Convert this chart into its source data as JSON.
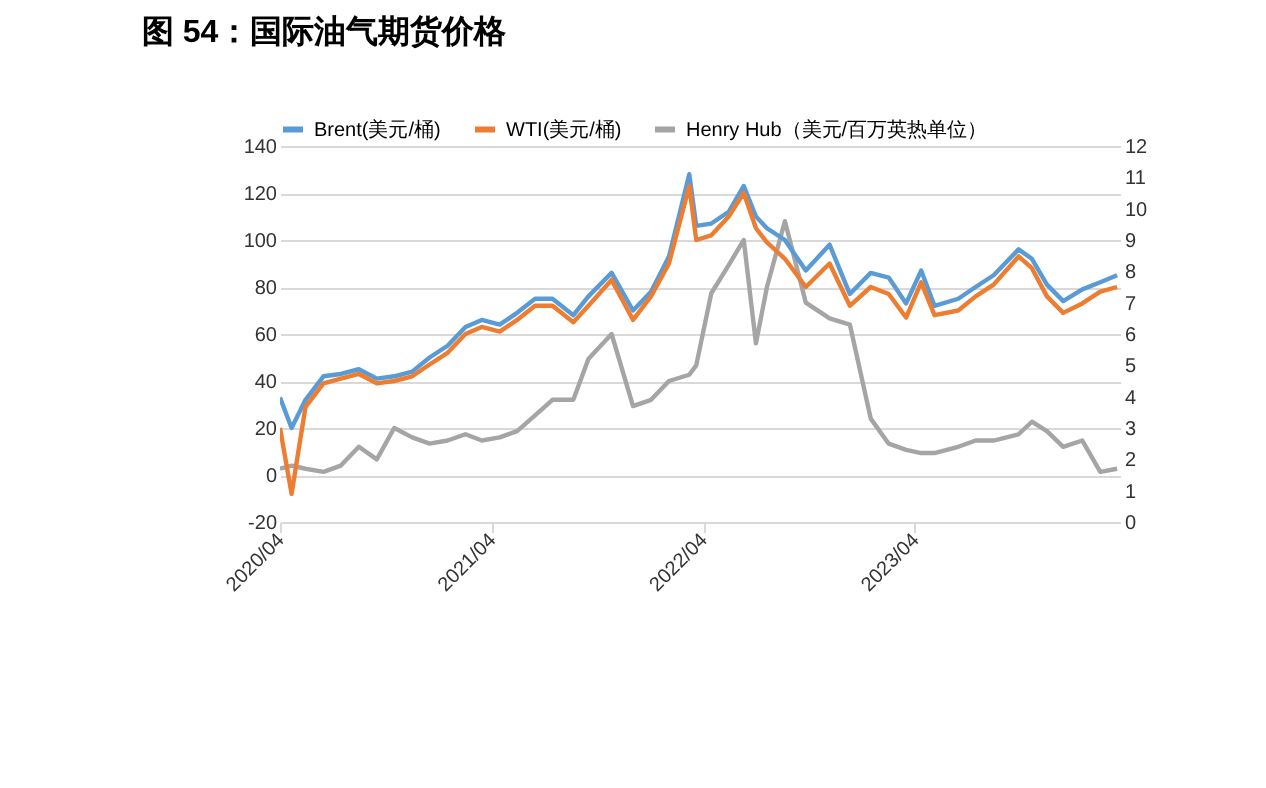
{
  "chart_data": {
    "type": "line",
    "title": "图 54：国际油气期货价格",
    "x": [
      "2020-04-01",
      "2020-04-21",
      "2020-05-15",
      "2020-06-15",
      "2020-07-15",
      "2020-08-15",
      "2020-09-15",
      "2020-10-15",
      "2020-11-15",
      "2020-12-15",
      "2021-01-15",
      "2021-02-15",
      "2021-03-15",
      "2021-04-15",
      "2021-05-15",
      "2021-06-15",
      "2021-07-15",
      "2021-08-20",
      "2021-09-15",
      "2021-10-25",
      "2021-12-01",
      "2022-01-01",
      "2022-02-01",
      "2022-03-08",
      "2022-03-20",
      "2022-04-15",
      "2022-05-15",
      "2022-06-10",
      "2022-07-01",
      "2022-07-20",
      "2022-08-20",
      "2022-09-25",
      "2022-11-05",
      "2022-12-10",
      "2023-01-15",
      "2023-02-15",
      "2023-03-17",
      "2023-04-12",
      "2023-05-05",
      "2023-06-15",
      "2023-07-15",
      "2023-08-15",
      "2023-09-27",
      "2023-10-20",
      "2023-11-15",
      "2023-12-13",
      "2024-01-15",
      "2024-02-15",
      "2024-03-15"
    ],
    "series": [
      {
        "name": "Brent(美元/桶)",
        "color": "#5b9bd5",
        "values": [
          33,
          20,
          32,
          42,
          43,
          45,
          41,
          42,
          44,
          50,
          55,
          63,
          66,
          64,
          69,
          75,
          75,
          68,
          76,
          86,
          70,
          78,
          93,
          128,
          106,
          107,
          112,
          123,
          110,
          105,
          100,
          87,
          98,
          77,
          86,
          84,
          73,
          87,
          72,
          75,
          80,
          85,
          96,
          92,
          81,
          74,
          79,
          82,
          85
        ]
      },
      {
        "name": "WTI(美元/桶)",
        "color": "#ed7d31",
        "values": [
          20,
          -8,
          29,
          39,
          41,
          43,
          39,
          40,
          42,
          47,
          52,
          60,
          63,
          61,
          66,
          72,
          72,
          65,
          72,
          83,
          66,
          76,
          90,
          123,
          100,
          102,
          110,
          120,
          105,
          99,
          92,
          80,
          90,
          72,
          80,
          77,
          67,
          82,
          68,
          70,
          76,
          81,
          93,
          88,
          76,
          69,
          73,
          78,
          80
        ]
      },
      {
        "name": "Henry Hub（美元/百万英热单位）",
        "color": "#a5a5a5",
        "axis": "y2",
        "values": [
          1.7,
          1.8,
          1.7,
          1.6,
          1.8,
          2.4,
          2.0,
          3.0,
          2.7,
          2.5,
          2.6,
          2.8,
          2.6,
          2.7,
          2.9,
          3.4,
          3.9,
          3.9,
          5.2,
          6.0,
          3.7,
          3.9,
          4.5,
          4.7,
          5.0,
          7.3,
          8.2,
          9.0,
          5.7,
          7.5,
          9.6,
          7.0,
          6.5,
          6.3,
          3.3,
          2.5,
          2.3,
          2.2,
          2.2,
          2.4,
          2.6,
          2.6,
          2.8,
          3.2,
          2.9,
          2.4,
          2.6,
          1.6,
          1.7
        ]
      }
    ],
    "xlim": [
      "2020-04-01",
      "2024-03-20"
    ],
    "xticks": [
      {
        "value": "2020-04-01",
        "label": "2020/04"
      },
      {
        "value": "2021-04-01",
        "label": "2021/04"
      },
      {
        "value": "2022-04-01",
        "label": "2022/04"
      },
      {
        "value": "2023-04-01",
        "label": "2023/04"
      }
    ],
    "ylim": [
      -20,
      140
    ],
    "yticks": [
      -20,
      0,
      20,
      40,
      60,
      80,
      100,
      120,
      140
    ],
    "y2lim": [
      0,
      12
    ],
    "y2ticks": [
      0,
      1,
      2,
      3,
      4,
      5,
      6,
      7,
      8,
      9,
      10,
      11,
      12
    ],
    "grid": "y",
    "legend": "top"
  }
}
